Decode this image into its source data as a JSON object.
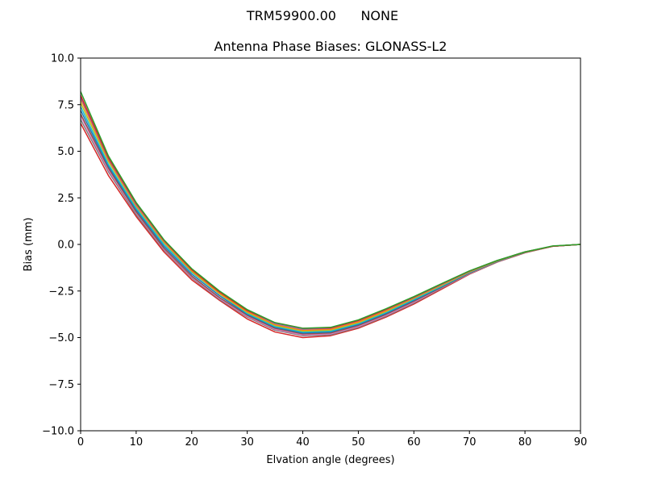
{
  "header": {
    "suptitle": "TRM59900.00      NONE"
  },
  "chart_data": {
    "type": "line",
    "title": "Antenna Phase Biases: GLONASS-L2",
    "xlabel": "Elvation angle (degrees)",
    "ylabel": "Bias (mm)",
    "xlim": [
      0,
      90
    ],
    "ylim": [
      -10,
      10
    ],
    "xticks": [
      0,
      10,
      20,
      30,
      40,
      50,
      60,
      70,
      80,
      90
    ],
    "xtick_labels": [
      "0",
      "10",
      "20",
      "30",
      "40",
      "50",
      "60",
      "70",
      "80",
      "90"
    ],
    "yticks": [
      -10,
      -7.5,
      -5,
      -2.5,
      0,
      2.5,
      5,
      7.5,
      10
    ],
    "ytick_labels": [
      "−10.0",
      "−7.5",
      "−5.0",
      "−2.5",
      "0.0",
      "2.5",
      "5.0",
      "7.5",
      "10.0"
    ],
    "grid": false,
    "legend": false,
    "x": [
      0,
      5,
      10,
      15,
      20,
      25,
      30,
      35,
      40,
      45,
      50,
      55,
      60,
      65,
      70,
      75,
      80,
      85,
      90
    ],
    "series": [
      {
        "color": "#d62728",
        "values": [
          6.5,
          3.7,
          1.5,
          -0.4,
          -1.9,
          -3.0,
          -4.0,
          -4.7,
          -5.0,
          -4.9,
          -4.5,
          -3.9,
          -3.2,
          -2.4,
          -1.6,
          -0.95,
          -0.45,
          -0.1,
          0.0
        ]
      },
      {
        "color": "#7f7f7f",
        "values": [
          6.7,
          3.9,
          1.6,
          -0.3,
          -1.8,
          -2.95,
          -3.9,
          -4.6,
          -4.9,
          -4.85,
          -4.45,
          -3.85,
          -3.15,
          -2.35,
          -1.58,
          -0.94,
          -0.44,
          -0.1,
          0.0
        ]
      },
      {
        "color": "#e377c2",
        "values": [
          6.9,
          4.0,
          1.7,
          -0.25,
          -1.75,
          -2.9,
          -3.85,
          -4.55,
          -4.85,
          -4.8,
          -4.4,
          -3.8,
          -3.1,
          -2.32,
          -1.56,
          -0.93,
          -0.43,
          -0.1,
          0.0
        ]
      },
      {
        "color": "#8c564b",
        "values": [
          7.0,
          4.1,
          1.75,
          -0.2,
          -1.7,
          -2.85,
          -3.8,
          -4.5,
          -4.8,
          -4.75,
          -4.35,
          -3.75,
          -3.05,
          -2.3,
          -1.54,
          -0.92,
          -0.43,
          -0.1,
          0.0
        ]
      },
      {
        "color": "#1f77b4",
        "values": [
          7.2,
          4.2,
          1.85,
          -0.1,
          -1.6,
          -2.75,
          -3.75,
          -4.45,
          -4.75,
          -4.7,
          -4.3,
          -3.7,
          -3.0,
          -2.27,
          -1.52,
          -0.91,
          -0.42,
          -0.1,
          0.0
        ]
      },
      {
        "color": "#17becf",
        "values": [
          7.4,
          4.3,
          1.95,
          0.0,
          -1.5,
          -2.65,
          -3.7,
          -4.4,
          -4.7,
          -4.65,
          -4.25,
          -3.65,
          -2.95,
          -2.24,
          -1.5,
          -0.9,
          -0.42,
          -0.1,
          0.0
        ]
      },
      {
        "color": "#bcbd22",
        "values": [
          7.6,
          4.45,
          2.05,
          0.1,
          -1.45,
          -2.65,
          -3.65,
          -4.35,
          -4.65,
          -4.6,
          -4.2,
          -3.6,
          -2.9,
          -2.2,
          -1.48,
          -0.89,
          -0.41,
          -0.1,
          0.0
        ]
      },
      {
        "color": "#ff7f0e",
        "values": [
          7.8,
          4.55,
          2.1,
          0.15,
          -1.4,
          -2.6,
          -3.6,
          -4.3,
          -4.6,
          -4.55,
          -4.15,
          -3.55,
          -2.87,
          -2.17,
          -1.46,
          -0.88,
          -0.41,
          -0.1,
          0.0
        ]
      },
      {
        "color": "#9467bd",
        "values": [
          7.9,
          4.6,
          2.15,
          0.2,
          -1.35,
          -2.55,
          -3.55,
          -4.25,
          -4.55,
          -4.5,
          -4.1,
          -3.5,
          -2.84,
          -2.14,
          -1.44,
          -0.87,
          -0.4,
          -0.1,
          0.0
        ]
      },
      {
        "color": "#d62728",
        "values": [
          8.0,
          4.65,
          2.2,
          0.22,
          -1.35,
          -2.55,
          -3.55,
          -4.2,
          -4.5,
          -4.48,
          -4.08,
          -3.48,
          -2.82,
          -2.12,
          -1.43,
          -0.87,
          -0.4,
          -0.1,
          0.0
        ]
      },
      {
        "color": "#2ca02c",
        "values": [
          8.2,
          4.75,
          2.25,
          0.25,
          -1.3,
          -2.5,
          -3.5,
          -4.2,
          -4.5,
          -4.45,
          -4.05,
          -3.45,
          -2.8,
          -2.1,
          -1.42,
          -0.86,
          -0.4,
          -0.08,
          0.0
        ]
      }
    ]
  }
}
